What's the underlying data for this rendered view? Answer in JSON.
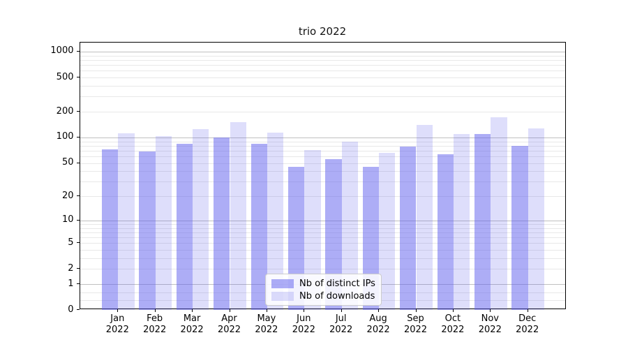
{
  "title": "trio 2022",
  "chart_data": {
    "type": "bar",
    "title": "trio 2022",
    "categories": [
      "Jan",
      "Feb",
      "Mar",
      "Apr",
      "May",
      "Jun",
      "Jul",
      "Aug",
      "Sep",
      "Oct",
      "Nov",
      "Dec"
    ],
    "category_year": "2022",
    "series": [
      {
        "name": "Nb of distinct IPs",
        "color": "rgba(92,92,237,0.50)",
        "values": [
          73,
          69,
          85,
          99,
          84,
          45,
          56,
          45,
          78,
          64,
          110,
          79
        ]
      },
      {
        "name": "Nb of downloads",
        "color": "rgba(92,92,237,0.20)",
        "values": [
          111,
          103,
          126,
          150,
          113,
          71,
          90,
          66,
          140,
          110,
          171,
          127
        ]
      }
    ],
    "xlabel": "",
    "ylabel": "",
    "yscale": "log1p",
    "ylim": [
      0,
      1280
    ],
    "y_tick_values": [
      1000,
      500,
      200,
      100,
      50,
      20,
      10,
      5,
      2,
      1,
      0
    ],
    "y_tick_labels": [
      "1000",
      "500",
      "200",
      "100",
      "50",
      "20",
      "10",
      "5",
      "2",
      "1",
      "0"
    ],
    "y_major_gridlines": [
      1,
      10,
      100,
      1000
    ],
    "y_minor_gridlines": [
      0.3,
      0.6,
      2,
      3,
      4,
      5,
      6,
      7,
      8,
      9,
      20,
      30,
      40,
      50,
      60,
      70,
      80,
      90,
      200,
      300,
      400,
      500,
      600,
      700,
      800,
      900
    ],
    "grid": true,
    "legend_position": "lower center",
    "legend_entries": [
      "Nb of distinct IPs",
      "Nb of downloads"
    ]
  }
}
